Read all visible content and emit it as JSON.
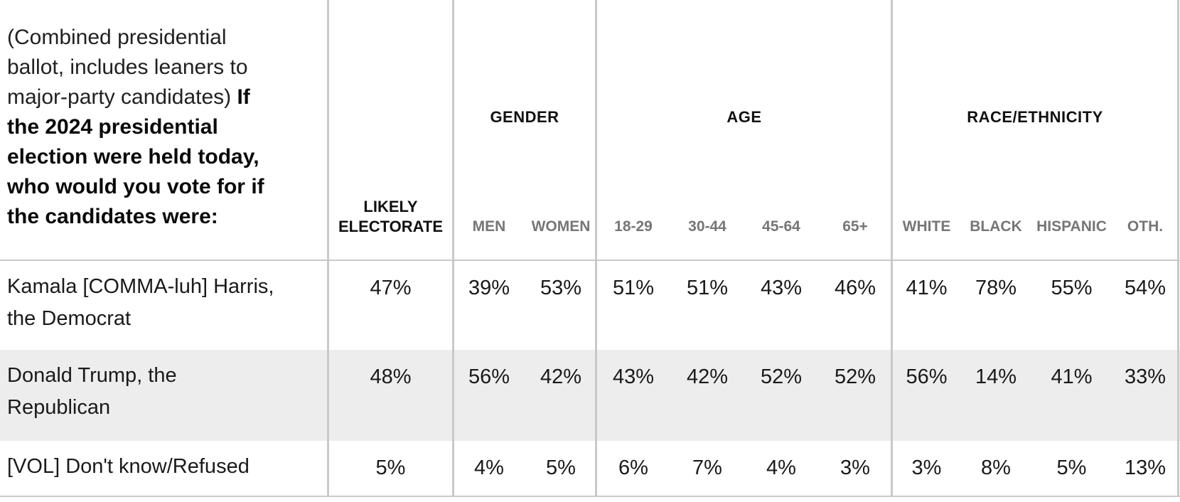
{
  "header": {
    "question_normal": "(Combined presidential\nballot, includes leaners to\nmajor-party candidates) ",
    "question_bold": "If\nthe 2024 presidential\nelection were held today,\nwho would you vote for if\nthe candidates were:",
    "likely_electorate": "LIKELY\nELECTORATE",
    "groups": [
      {
        "label": "GENDER",
        "cols": [
          "MEN",
          "WOMEN"
        ]
      },
      {
        "label": "AGE",
        "cols": [
          "18-29",
          "30-44",
          "45-64",
          "65+"
        ]
      },
      {
        "label": "RACE/ETHNICITY",
        "cols": [
          "WHITE",
          "BLACK",
          "HISPANIC",
          "OTH."
        ]
      }
    ]
  },
  "rows": [
    {
      "label": "Kamala [COMMA-luh] Harris,\nthe Democrat",
      "values": [
        "47%",
        "39%",
        "53%",
        "51%",
        "51%",
        "43%",
        "46%",
        "41%",
        "78%",
        "55%",
        "54%"
      ]
    },
    {
      "label": "Donald Trump, the\nRepublican",
      "values": [
        "48%",
        "56%",
        "42%",
        "43%",
        "42%",
        "52%",
        "52%",
        "56%",
        "14%",
        "41%",
        "33%"
      ]
    },
    {
      "label": "[VOL] Don't know/Refused",
      "values": [
        "5%",
        "4%",
        "5%",
        "6%",
        "7%",
        "4%",
        "3%",
        "3%",
        "8%",
        "5%",
        "13%"
      ]
    }
  ],
  "colors": {
    "row_stripe": "#ededed",
    "grid_line": "#c9c9c9",
    "sub_label_gray": "#767676",
    "text": "#1a1a1a"
  }
}
